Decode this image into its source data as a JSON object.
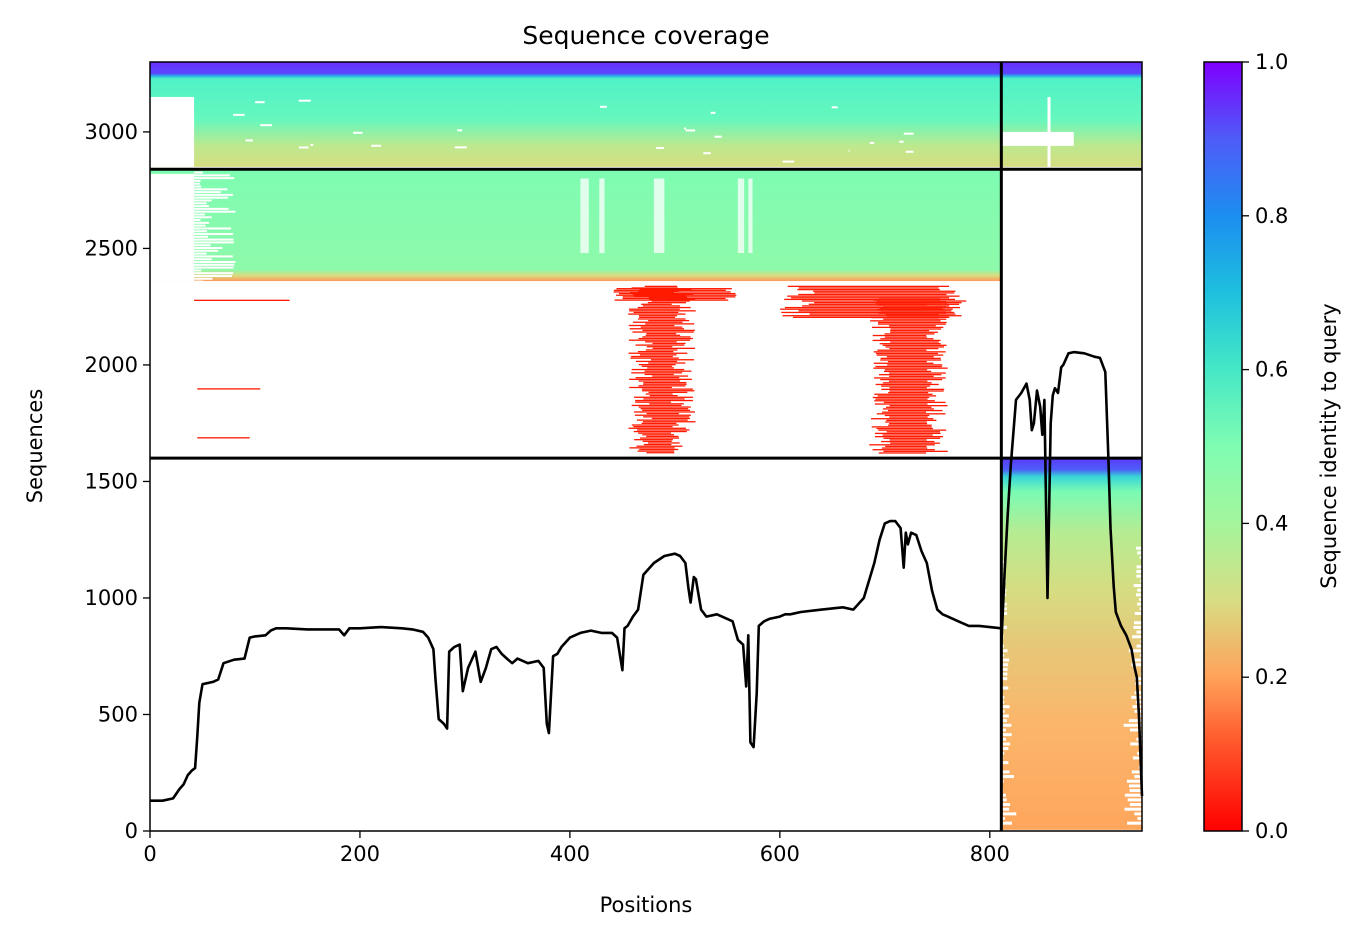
{
  "chart_data": {
    "type": "heatmap",
    "title": "Sequence coverage",
    "xlabel": "Positions",
    "ylabel": "Sequences",
    "xlim": [
      0,
      945
    ],
    "ylim": [
      0,
      3300
    ],
    "xticks": [
      "0",
      "200",
      "400",
      "600",
      "800"
    ],
    "yticks": [
      "0",
      "500",
      "1000",
      "1500",
      "2000",
      "2500",
      "3000"
    ],
    "colorbar": {
      "label": "Sequence identity to query",
      "colormap": "rainbow_r",
      "range": [
        0.0,
        1.0
      ],
      "ticks": [
        "0.0",
        "0.2",
        "0.4",
        "0.6",
        "0.8",
        "1.0"
      ]
    },
    "grid": false,
    "legend": "none",
    "chain_boundary_x": 811,
    "msa_group_boundaries_y": [
      1600,
      2840
    ],
    "msa_blocks": [
      {
        "name": "paired",
        "x_range": [
          0,
          945
        ],
        "y_range": [
          2840,
          3300
        ],
        "identity_top": 1.0,
        "identity_bulk": 0.52,
        "identity_bottom": 0.38
      },
      {
        "name": "chain-A-unpaired",
        "x_range": [
          0,
          811
        ],
        "y_range": [
          2360,
          2840
        ],
        "identity_bulk": 0.45,
        "identity_bottom": 0.25
      },
      {
        "name": "chain-A-fragments",
        "x_range": [
          0,
          811
        ],
        "y_range": [
          1600,
          2360
        ],
        "identity": 0.02
      },
      {
        "name": "chain-B-unpaired",
        "x_range": [
          811,
          945
        ],
        "y_range": [
          0,
          1600
        ],
        "identity_top": 1.0,
        "identity_bottom": 0.22
      }
    ],
    "coverage_line": {
      "name": "coverage",
      "color": "#000000",
      "chain_A": {
        "x": [
          0,
          12,
          22,
          28,
          32,
          36,
          40,
          43,
          45,
          47,
          50,
          60,
          65,
          70,
          80,
          90,
          95,
          100,
          110,
          115,
          120,
          130,
          150,
          170,
          180,
          185,
          190,
          200,
          220,
          240,
          250,
          260,
          265,
          270,
          272,
          275,
          280,
          283,
          285,
          290,
          295,
          298,
          300,
          303,
          310,
          315,
          320,
          325,
          330,
          335,
          340,
          345,
          350,
          360,
          370,
          375,
          378,
          380,
          384,
          388,
          392,
          400,
          410,
          420,
          430,
          440,
          445,
          450,
          452,
          455,
          460,
          465,
          470,
          480,
          490,
          500,
          505,
          510,
          513,
          515,
          518,
          520,
          525,
          530,
          540,
          555,
          560,
          565,
          568,
          570,
          572,
          575,
          578,
          580,
          585,
          590,
          600,
          605,
          610,
          620,
          640,
          660,
          670,
          680,
          690,
          695,
          700,
          705,
          710,
          715,
          718,
          720,
          722,
          725,
          730,
          735,
          740,
          745,
          750,
          755,
          760,
          770,
          780,
          790,
          800,
          811
        ],
        "y": [
          130,
          130,
          140,
          180,
          200,
          240,
          260,
          270,
          400,
          550,
          630,
          640,
          650,
          720,
          735,
          740,
          830,
          835,
          840,
          860,
          870,
          870,
          865,
          865,
          865,
          840,
          870,
          870,
          875,
          870,
          865,
          855,
          830,
          780,
          650,
          480,
          460,
          440,
          770,
          790,
          800,
          600,
          640,
          700,
          770,
          640,
          700,
          780,
          790,
          760,
          740,
          720,
          740,
          720,
          730,
          700,
          460,
          420,
          750,
          760,
          790,
          830,
          850,
          860,
          850,
          850,
          830,
          690,
          870,
          880,
          920,
          950,
          1100,
          1150,
          1180,
          1190,
          1180,
          1150,
          1040,
          980,
          1090,
          1080,
          950,
          920,
          930,
          900,
          820,
          800,
          620,
          840,
          380,
          360,
          590,
          880,
          900,
          910,
          920,
          930,
          930,
          940,
          950,
          960,
          950,
          1000,
          1150,
          1250,
          1320,
          1330,
          1330,
          1300,
          1130,
          1280,
          1230,
          1280,
          1270,
          1200,
          1150,
          1030,
          950,
          930,
          920,
          900,
          880,
          880,
          875,
          870
        ]
      },
      "chain_B": {
        "x": [
          811,
          814,
          817,
          820,
          825,
          830,
          835,
          838,
          840,
          842,
          845,
          848,
          850,
          852,
          855,
          858,
          860,
          862,
          865,
          868,
          870,
          875,
          880,
          890,
          900,
          905,
          910,
          913,
          915,
          918,
          920,
          925,
          930,
          935,
          938,
          940,
          942,
          945
        ],
        "y": [
          800,
          1100,
          1350,
          1570,
          1850,
          1880,
          1920,
          1850,
          1720,
          1750,
          1890,
          1820,
          1700,
          1850,
          1000,
          1750,
          1870,
          1900,
          1880,
          1990,
          2000,
          2050,
          2055,
          2050,
          2035,
          2030,
          1970,
          1600,
          1300,
          1050,
          940,
          880,
          840,
          780,
          700,
          660,
          500,
          150
        ]
      }
    }
  }
}
